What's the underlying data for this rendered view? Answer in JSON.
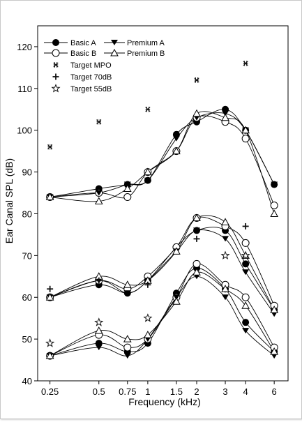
{
  "chart_data": {
    "type": "line",
    "title": "",
    "xlabel": "Frequency (kHz)",
    "ylabel": "Ear Canal SPL (dB)",
    "x_scale": "log",
    "ylim": [
      40,
      125
    ],
    "yticks": [
      40,
      50,
      60,
      70,
      80,
      90,
      100,
      110,
      120
    ],
    "xticks": [
      0.25,
      0.5,
      0.75,
      1,
      1.5,
      2,
      3,
      4,
      6
    ],
    "xtick_labels": [
      "0.25",
      "0.5",
      "0.75",
      "1",
      "1.5",
      "2",
      "3",
      "4",
      "6"
    ],
    "x": [
      0.25,
      0.5,
      0.75,
      1,
      1.5,
      2,
      3,
      4,
      6
    ],
    "grid": false,
    "legend_position": "top-left",
    "legend": {
      "basic_a": "Basic A",
      "basic_b": "Basic B",
      "premium_a": "Premium A",
      "premium_b": "Premium B",
      "target_mpo": "Target MPO",
      "target_70": "Target 70dB",
      "target_55": "Target 55dB"
    },
    "input_levels": [
      {
        "level": "MPO",
        "target": [
          96,
          102,
          null,
          105,
          null,
          112,
          null,
          116,
          null
        ],
        "basic_a": [
          84,
          86,
          87,
          88,
          99,
          102,
          105,
          100,
          87
        ],
        "basic_b": [
          84,
          85,
          84,
          90,
          95,
          103,
          102,
          98,
          82
        ],
        "premium_a": [
          84,
          85,
          87,
          88,
          98,
          103,
          104,
          100,
          87
        ],
        "premium_b": [
          84,
          83,
          86,
          90,
          95,
          104,
          103,
          100,
          80
        ]
      },
      {
        "level": "70 dB",
        "target": [
          62,
          64,
          null,
          63,
          null,
          74,
          null,
          77,
          null
        ],
        "basic_a": [
          60,
          63,
          61,
          64,
          72,
          76,
          76,
          68,
          57
        ],
        "basic_b": [
          60,
          64,
          62,
          65,
          72,
          79,
          77,
          73,
          58
        ],
        "premium_a": [
          60,
          64,
          61,
          64,
          71,
          76,
          74,
          66,
          56
        ],
        "premium_b": [
          60,
          65,
          63,
          64,
          71,
          79,
          78,
          70,
          57
        ]
      },
      {
        "level": "55 dB",
        "target": [
          49,
          54,
          null,
          55,
          null,
          null,
          70,
          70,
          null
        ],
        "basic_a": [
          46,
          49,
          47,
          49,
          61,
          67,
          62,
          54,
          47
        ],
        "basic_b": [
          46,
          51,
          48,
          50,
          60,
          68,
          63,
          60,
          48
        ],
        "premium_a": [
          46,
          48,
          46,
          50,
          60,
          65,
          60,
          52,
          46
        ],
        "premium_b": [
          46,
          52,
          50,
          51,
          59,
          66,
          62,
          58,
          47
        ]
      }
    ]
  },
  "colors": {
    "ink": "#000000",
    "background": "#ffffff",
    "target_marker": "#111111"
  }
}
